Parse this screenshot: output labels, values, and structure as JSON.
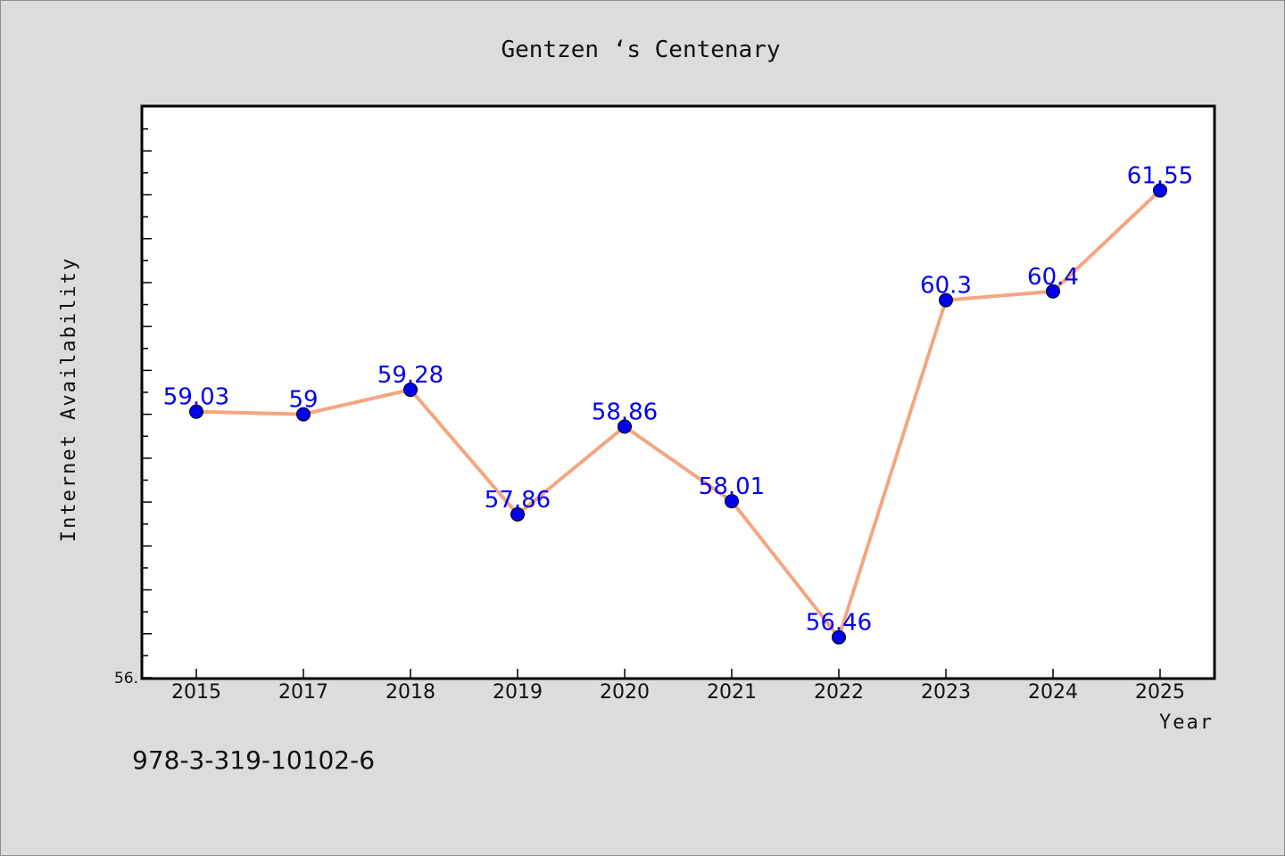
{
  "chart_data": {
    "type": "line",
    "title": "Gentzen ‘s Centenary",
    "xlabel": "Year",
    "ylabel": "Internet Availability",
    "categories": [
      "2015",
      "2017",
      "2018",
      "2019",
      "2020",
      "2021",
      "2022",
      "2023",
      "2024",
      "2025"
    ],
    "series": [
      {
        "values": [
          59.03,
          59,
          59.28,
          57.86,
          58.86,
          58.01,
          56.46,
          60.3,
          60.4,
          61.55
        ],
        "labels": [
          "59.03",
          "59",
          "59.28",
          "57.86",
          "58.86",
          "58.01",
          "56.46",
          "60.3",
          "60.4",
          "61.55"
        ],
        "line_color": "#f4a582",
        "marker_color": "#0000ee"
      }
    ],
    "y_min_label": "56.",
    "ylim": [
      56,
      62.5
    ],
    "grid": false,
    "legend": "none"
  },
  "footer_text": "978-3-319-10102-6",
  "colors": {
    "background": "#dcdcdc",
    "plot_background": "#ffffff",
    "line": "#f4a582",
    "marker": "#0000ee",
    "data_label": "#0000ee"
  }
}
